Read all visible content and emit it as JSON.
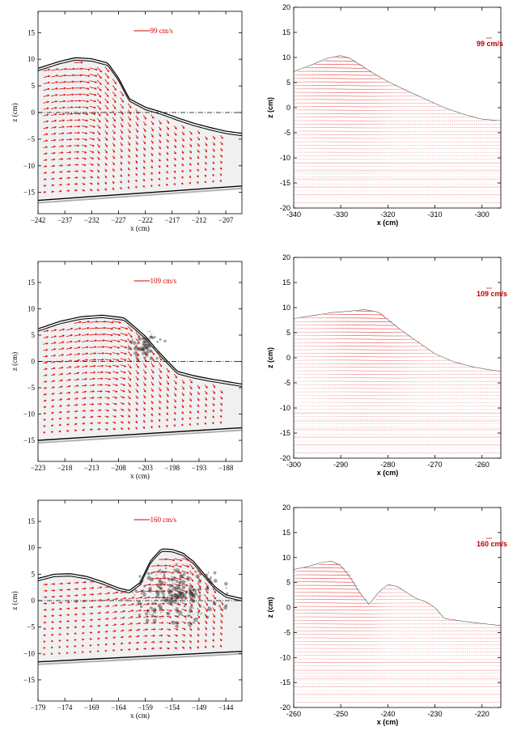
{
  "colors": {
    "vector": "#e00000",
    "outline": "#000000",
    "photo_gray": "#9a9a9a"
  },
  "chart_data": [
    {
      "type": "quiver",
      "id": "exp-1",
      "xlabel": "x (cm)",
      "ylabel": "z (cm)",
      "xlim": [
        -242,
        -204
      ],
      "ylim": [
        -19,
        19
      ],
      "xticks": [
        "−242",
        "−237",
        "−232",
        "−227",
        "−222",
        "−217",
        "−212",
        "−207"
      ],
      "yticks": [
        "−15",
        "−10",
        "−5",
        "0",
        "5",
        "10",
        "15"
      ],
      "scale_label": "99 cm/s",
      "scale_value": 99,
      "grid": false,
      "mean_water_level": 0,
      "surface_x": [
        -242,
        -238,
        -235,
        -232,
        -229,
        -227,
        -225,
        -222,
        -219,
        -216,
        -213,
        -210,
        -207,
        -204
      ],
      "surface_z": [
        8.3,
        9.6,
        10.3,
        10.1,
        9.3,
        6.5,
        2.6,
        1.0,
        0.1,
        -1.0,
        -2.0,
        -2.8,
        -3.5,
        -3.9
      ],
      "bottom_x": [
        -242,
        -204
      ],
      "bottom_z": [
        -16.5,
        -13.8
      ]
    },
    {
      "type": "quiver",
      "id": "num-1",
      "xlabel": "x (cm)",
      "ylabel": "z (cm)",
      "xlim": [
        -340,
        -296
      ],
      "ylim": [
        -20,
        20
      ],
      "xticks": [
        "-340",
        "-330",
        "-320",
        "-310",
        "-300"
      ],
      "yticks": [
        "-20",
        "-15",
        "-10",
        "-5",
        "0",
        "5",
        "10",
        "15",
        "20"
      ],
      "scale_label": "99 cm/s",
      "scale_value": 99,
      "grid": false,
      "surface_x": [
        -340,
        -336,
        -333,
        -330,
        -328,
        -326,
        -323,
        -320,
        -316,
        -312,
        -308,
        -304,
        -300,
        -296
      ],
      "surface_z": [
        7.2,
        8.6,
        9.8,
        10.4,
        9.8,
        8.6,
        6.8,
        5.2,
        3.4,
        1.7,
        0.0,
        -1.3,
        -2.3,
        -2.6
      ],
      "bottom_z": -20
    },
    {
      "type": "quiver",
      "id": "exp-2",
      "xlabel": "x (cm)",
      "ylabel": "z (cm)",
      "xlim": [
        -223,
        -185
      ],
      "ylim": [
        -19,
        19
      ],
      "xticks": [
        "−223",
        "−218",
        "−213",
        "−208",
        "−203",
        "−198",
        "−193",
        "−188"
      ],
      "yticks": [
        "−15",
        "−10",
        "−5",
        "0",
        "5",
        "10",
        "15"
      ],
      "scale_label": "109 cm/s",
      "scale_value": 109,
      "grid": false,
      "mean_water_level": 0,
      "surface_x": [
        -223,
        -219,
        -215,
        -211,
        -207,
        -205,
        -203,
        -201,
        -199,
        -197,
        -194,
        -191,
        -188,
        -185
      ],
      "surface_z": [
        6.2,
        7.6,
        8.5,
        8.8,
        8.3,
        6.6,
        4.8,
        2.4,
        0.2,
        -1.9,
        -2.7,
        -3.3,
        -3.8,
        -4.3
      ],
      "bottom_x": [
        -223,
        -185
      ],
      "bottom_z": [
        -15.0,
        -12.6
      ]
    },
    {
      "type": "quiver",
      "id": "num-2",
      "xlabel": "x (cm)",
      "ylabel": "z (cm)",
      "xlim": [
        -300,
        -256
      ],
      "ylim": [
        -20,
        20
      ],
      "xticks": [
        "-300",
        "-290",
        "-280",
        "-270",
        "-260"
      ],
      "yticks": [
        "-20",
        "-15",
        "-10",
        "-5",
        "0",
        "5",
        "10",
        "15",
        "20"
      ],
      "scale_label": "109 cm/s",
      "scale_value": 109,
      "grid": false,
      "surface_x": [
        -300,
        -296,
        -292,
        -288,
        -285,
        -282,
        -280,
        -277,
        -274,
        -270,
        -266,
        -262,
        -259,
        -256
      ],
      "surface_z": [
        7.8,
        8.4,
        9.0,
        9.3,
        9.6,
        9.1,
        7.6,
        5.4,
        3.4,
        0.8,
        -0.8,
        -1.8,
        -2.3,
        -2.7
      ],
      "bottom_z": -20
    },
    {
      "type": "quiver",
      "id": "exp-3",
      "xlabel": "x (cm)",
      "ylabel": "z (cm)",
      "xlim": [
        -179,
        -141
      ],
      "ylim": [
        -19,
        19
      ],
      "xticks": [
        "−179",
        "−174",
        "−169",
        "−164",
        "−159",
        "−154",
        "−149",
        "−144"
      ],
      "yticks": [
        "−15",
        "−10",
        "−5",
        "0",
        "5",
        "10",
        "15"
      ],
      "scale_label": "160 cm/s",
      "scale_value": 160,
      "grid": false,
      "mean_water_level": 0,
      "surface_x": [
        -179,
        -176,
        -173,
        -170,
        -167,
        -164,
        -162,
        -160,
        -158,
        -156,
        -154,
        -152,
        -150,
        -148,
        -146,
        -144,
        -141
      ],
      "surface_z": [
        4.2,
        5.0,
        5.1,
        4.6,
        3.6,
        2.4,
        1.9,
        3.4,
        7.6,
        9.8,
        9.7,
        9.0,
        7.4,
        5.0,
        2.6,
        1.1,
        0.4
      ],
      "bottom_x": [
        -179,
        -141
      ],
      "bottom_z": [
        -11.6,
        -9.6
      ]
    },
    {
      "type": "quiver",
      "id": "num-3",
      "xlabel": "x (cm)",
      "ylabel": "z (cm)",
      "xlim": [
        -260,
        -216
      ],
      "ylim": [
        -20,
        20
      ],
      "xticks": [
        "-260",
        "-250",
        "-240",
        "-230",
        "-220"
      ],
      "yticks": [
        "-20",
        "-15",
        "-10",
        "-5",
        "0",
        "5",
        "10",
        "15",
        "20"
      ],
      "scale_label": "160 cm/s",
      "scale_value": 160,
      "grid": false,
      "surface_x": [
        -260,
        -257,
        -254,
        -252,
        -250,
        -248,
        -246,
        -244,
        -242,
        -240,
        -238,
        -236,
        -234,
        -232,
        -230,
        -228,
        -225,
        -222,
        -219,
        -216
      ],
      "surface_z": [
        7.6,
        8.2,
        9.0,
        9.3,
        8.4,
        6.0,
        3.0,
        0.6,
        3.0,
        4.6,
        4.2,
        3.0,
        1.8,
        1.2,
        0.0,
        -2.2,
        -2.6,
        -3.0,
        -3.3,
        -3.6
      ],
      "bottom_z": -20
    }
  ]
}
